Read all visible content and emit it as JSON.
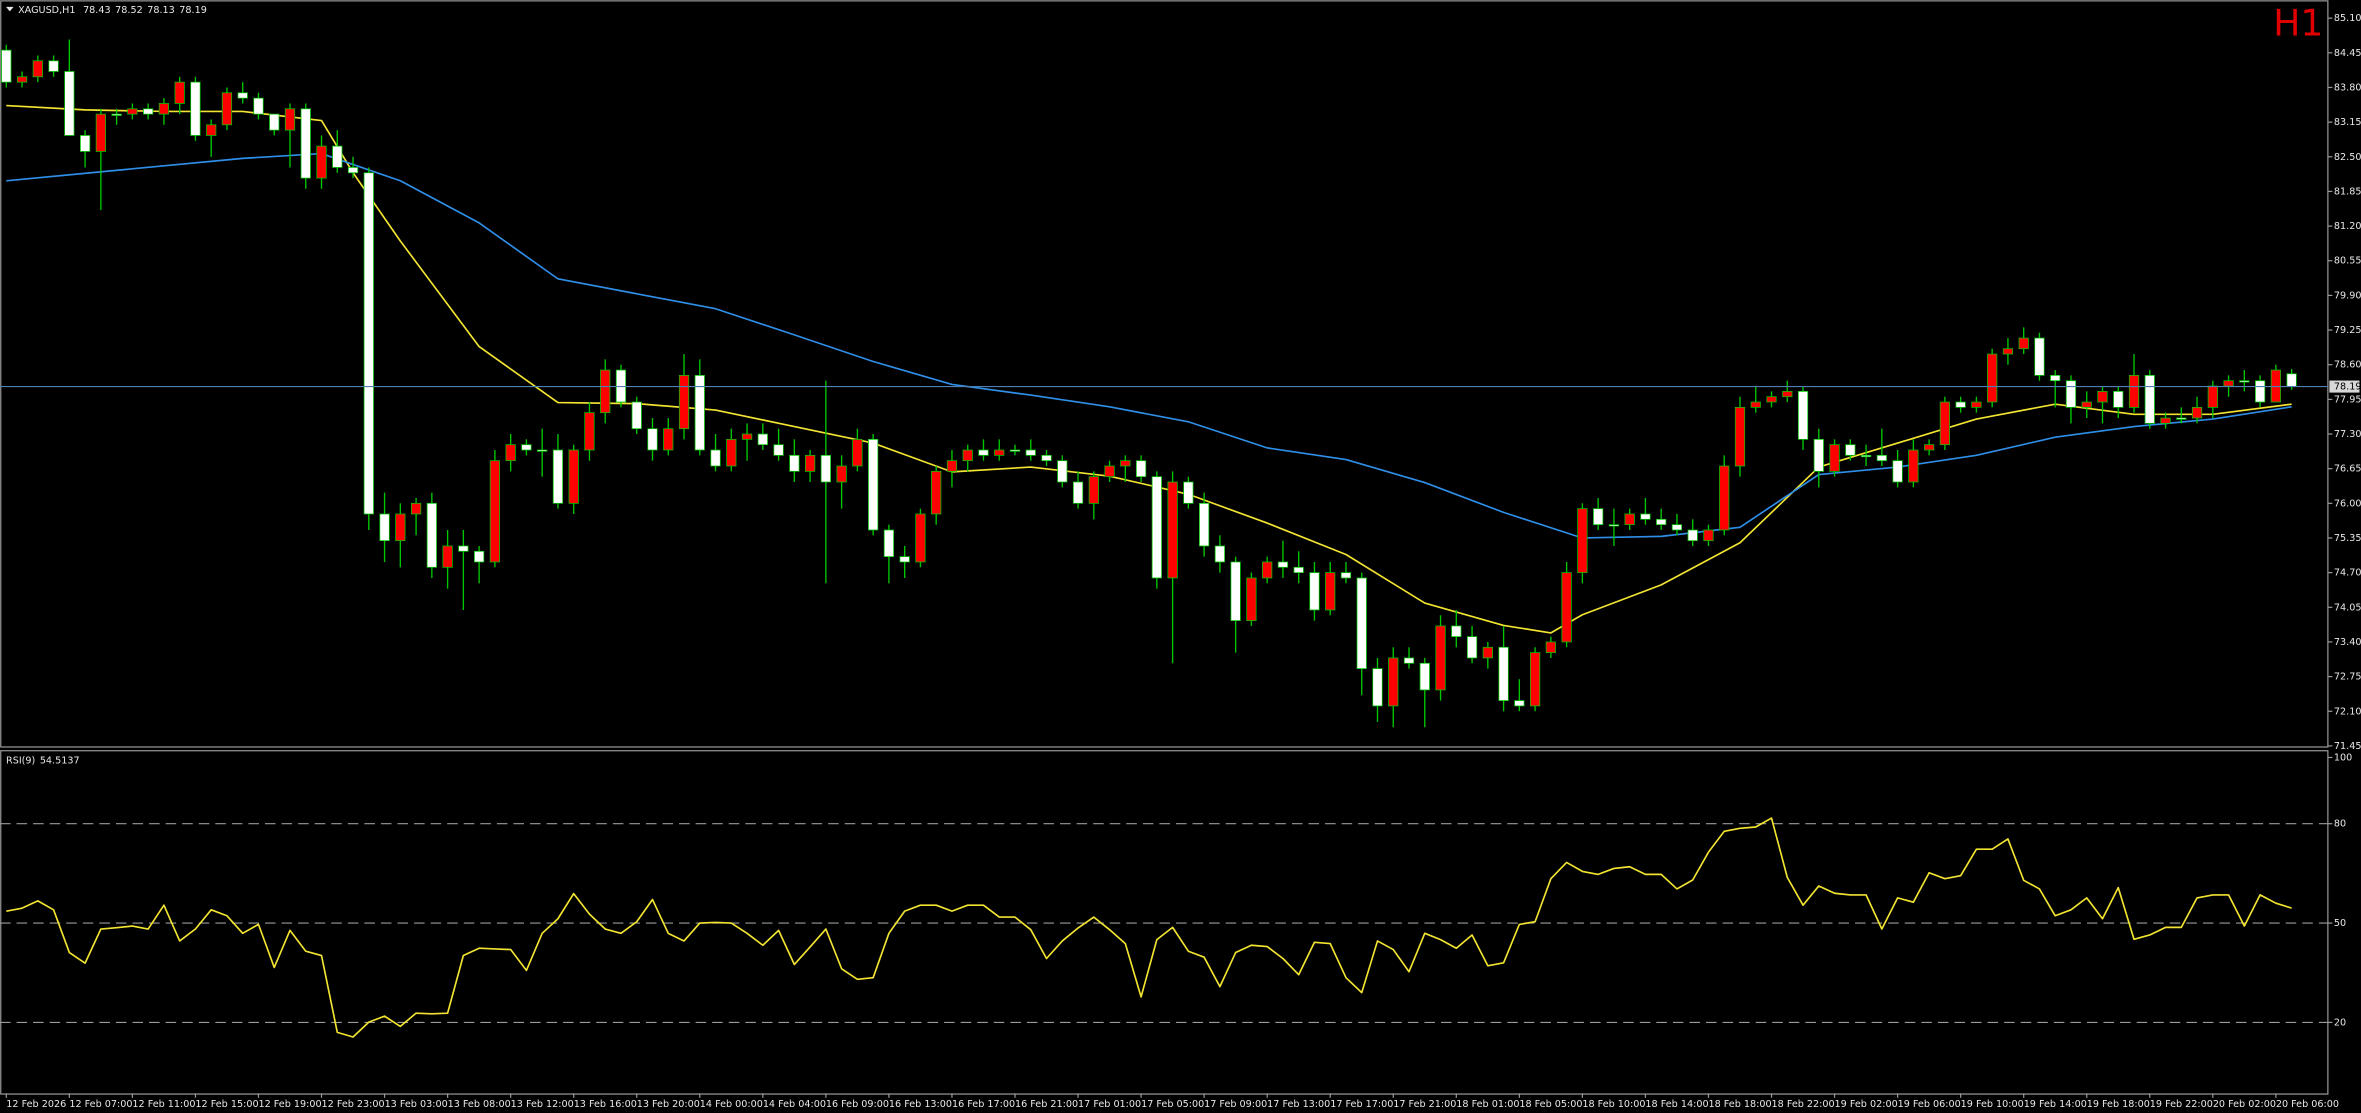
{
  "chart_data": [
    {
      "type": "candlestick",
      "symbol": "XAGUSD,H1",
      "timeframe": "H1",
      "up_color": "#ff0000",
      "down_color": "#ffffff",
      "wick_color": "#00c800",
      "price_line_color": "#4f7fb0",
      "xlim": [
        -0.4,
        147.3
      ],
      "ylim": [
        71.43,
        85.41
      ],
      "yticks": [
        {
          "value": 85.1,
          "label": "85.10"
        },
        84.45,
        {
          "value": 83.8,
          "label": "83.80"
        },
        83.15,
        {
          "value": 82.5,
          "label": "82.50"
        },
        81.85,
        {
          "value": 81.2,
          "label": "81.20"
        },
        80.55,
        {
          "value": 79.9,
          "label": "79.90"
        },
        79.25,
        {
          "value": 78.6,
          "label": "78.60"
        },
        77.95,
        {
          "value": 77.3,
          "label": "77.30"
        },
        76.65,
        {
          "value": 76,
          "label": "76.00"
        },
        75.35,
        {
          "value": 74.7,
          "label": "74.70"
        },
        74.05,
        {
          "value": 73.4,
          "label": "73.40"
        },
        72.75,
        {
          "value": 72.1,
          "label": "72.10"
        },
        71.45
      ],
      "xticks": [
        {
          "value": 0,
          "label": "12 Feb 2026"
        },
        {
          "value": 4,
          "label": "12 Feb 07:00"
        },
        {
          "value": 8,
          "label": "12 Feb 11:00"
        },
        {
          "value": 12,
          "label": "12 Feb 15:00"
        },
        {
          "value": 16,
          "label": "12 Feb 19:00"
        },
        {
          "value": 20,
          "label": "12 Feb 23:00"
        },
        {
          "value": 24,
          "label": "13 Feb 03:00"
        },
        {
          "value": 28,
          "label": "13 Feb 08:00"
        },
        {
          "value": 32,
          "label": "13 Feb 12:00"
        },
        {
          "value": 36,
          "label": "13 Feb 16:00"
        },
        {
          "value": 40,
          "label": "13 Feb 20:00"
        },
        {
          "value": 44,
          "label": "14 Feb 00:00"
        },
        {
          "value": 48,
          "label": "14 Feb 04:00"
        },
        {
          "value": 52,
          "label": "16 Feb 09:00"
        },
        {
          "value": 56,
          "label": "16 Feb 13:00"
        },
        {
          "value": 60,
          "label": "16 Feb 17:00"
        },
        {
          "value": 64,
          "label": "16 Feb 21:00"
        },
        {
          "value": 68,
          "label": "17 Feb 01:00"
        },
        {
          "value": 72,
          "label": "17 Feb 05:00"
        },
        {
          "value": 76,
          "label": "17 Feb 09:00"
        },
        {
          "value": 80,
          "label": "17 Feb 13:00"
        },
        {
          "value": 84,
          "label": "17 Feb 17:00"
        },
        {
          "value": 88,
          "label": "17 Feb 21:00"
        },
        {
          "value": 92,
          "label": "18 Feb 01:00"
        },
        {
          "value": 96,
          "label": "18 Feb 05:00"
        },
        {
          "value": 100,
          "label": "18 Feb 10:00"
        },
        {
          "value": 104,
          "label": "18 Feb 14:00"
        },
        {
          "value": 108,
          "label": "18 Feb 18:00"
        },
        {
          "value": 112,
          "label": "18 Feb 22:00"
        },
        {
          "value": 116,
          "label": "19 Feb 02:00"
        },
        {
          "value": 120,
          "label": "19 Feb 06:00"
        },
        {
          "value": 124,
          "label": "19 Feb 10:00"
        },
        {
          "value": 128,
          "label": "19 Feb 14:00"
        },
        {
          "value": 132,
          "label": "19 Feb 18:00"
        },
        {
          "value": 136,
          "label": "19 Feb 22:00"
        },
        {
          "value": 140,
          "label": "20 Feb 02:00"
        },
        {
          "value": 144,
          "label": "20 Feb 06:00"
        }
      ],
      "open": [
        84.5,
        83.9,
        84.0,
        84.3,
        84.1,
        82.9,
        82.6,
        83.3,
        83.3,
        83.4,
        83.3,
        83.5,
        83.9,
        82.9,
        83.1,
        83.7,
        83.6,
        83.3,
        83.0,
        83.4,
        82.1,
        82.7,
        82.3,
        82.2,
        75.8,
        75.3,
        75.8,
        76.0,
        74.8,
        75.2,
        75.1,
        74.9,
        76.8,
        77.1,
        77.0,
        77.0,
        76.0,
        77.0,
        77.7,
        78.5,
        77.9,
        77.4,
        77.0,
        77.4,
        78.4,
        77.0,
        76.7,
        77.2,
        77.3,
        77.1,
        76.9,
        76.6,
        76.9,
        76.4,
        76.7,
        77.2,
        75.5,
        75.0,
        74.9,
        75.8,
        76.6,
        76.8,
        77.0,
        76.9,
        77.0,
        77.0,
        76.9,
        76.8,
        76.4,
        76.0,
        76.5,
        76.7,
        76.8,
        76.5,
        74.6,
        76.4,
        76.0,
        75.2,
        74.9,
        73.8,
        74.6,
        74.9,
        74.8,
        74.7,
        74.0,
        74.7,
        74.6,
        72.9,
        72.2,
        73.1,
        73.0,
        72.5,
        73.7,
        73.5,
        73.1,
        73.3,
        72.3,
        72.2,
        73.2,
        73.4,
        74.7,
        75.9,
        75.6,
        75.6,
        75.8,
        75.7,
        75.6,
        75.5,
        75.3,
        75.5,
        76.7,
        77.8,
        77.9,
        78.0,
        78.1,
        77.2,
        76.6,
        77.1,
        76.9,
        76.9,
        76.8,
        76.4,
        77.0,
        77.1,
        77.9,
        77.8,
        77.9,
        78.8,
        78.9,
        79.1,
        78.4,
        78.3,
        77.8,
        77.9,
        78.1,
        77.8,
        78.4,
        77.5,
        77.6,
        77.6,
        77.8,
        78.2,
        78.3,
        78.3,
        77.9,
        78.43
      ],
      "high": [
        84.6,
        84.1,
        84.4,
        84.4,
        84.7,
        83.0,
        83.4,
        83.4,
        83.5,
        83.5,
        83.6,
        84.0,
        84.0,
        83.2,
        83.8,
        83.9,
        83.7,
        83.3,
        83.5,
        83.5,
        82.9,
        83.0,
        82.5,
        82.3,
        76.2,
        76.0,
        76.1,
        76.2,
        75.5,
        75.5,
        75.2,
        77.0,
        77.3,
        77.2,
        77.4,
        77.3,
        77.1,
        77.9,
        78.7,
        78.6,
        78.0,
        77.6,
        77.6,
        78.8,
        78.7,
        77.3,
        77.4,
        77.5,
        77.5,
        77.4,
        77.2,
        77.0,
        78.3,
        76.9,
        77.4,
        77.3,
        75.6,
        75.2,
        75.9,
        76.7,
        77.0,
        77.1,
        77.2,
        77.2,
        77.1,
        77.2,
        77.0,
        76.9,
        76.6,
        76.6,
        76.8,
        76.9,
        76.9,
        76.6,
        76.6,
        76.5,
        76.2,
        75.4,
        75.0,
        74.7,
        75.0,
        75.3,
        75.1,
        74.9,
        74.9,
        74.9,
        74.7,
        73.1,
        73.3,
        73.3,
        73.1,
        73.9,
        74.0,
        73.7,
        73.4,
        73.7,
        72.7,
        73.3,
        73.5,
        74.9,
        76.0,
        76.1,
        75.9,
        75.9,
        76.1,
        75.9,
        75.8,
        75.7,
        75.6,
        76.9,
        78.0,
        78.2,
        78.1,
        78.3,
        78.2,
        77.4,
        77.2,
        77.2,
        77.1,
        77.4,
        77.0,
        77.2,
        77.2,
        78.0,
        78.0,
        78.0,
        78.9,
        79.1,
        79.3,
        79.2,
        78.5,
        78.4,
        78.1,
        78.2,
        78.2,
        78.8,
        78.5,
        77.7,
        77.8,
        78.0,
        78.3,
        78.4,
        78.5,
        78.4,
        78.6,
        78.52
      ],
      "low": [
        83.8,
        83.8,
        83.9,
        84.0,
        82.9,
        82.3,
        81.5,
        83.1,
        83.2,
        83.2,
        83.1,
        83.3,
        82.8,
        82.5,
        83.0,
        83.5,
        83.2,
        82.9,
        82.3,
        81.9,
        81.9,
        82.2,
        82.1,
        75.5,
        74.9,
        74.8,
        75.4,
        74.6,
        74.4,
        74.0,
        74.5,
        74.8,
        76.6,
        76.9,
        76.5,
        75.9,
        75.8,
        76.8,
        77.5,
        77.8,
        77.3,
        76.8,
        76.9,
        77.2,
        76.9,
        76.6,
        76.6,
        76.8,
        77.0,
        76.8,
        76.4,
        76.4,
        74.5,
        75.9,
        76.6,
        75.4,
        74.5,
        74.6,
        74.8,
        75.6,
        76.3,
        76.6,
        76.8,
        76.8,
        76.9,
        76.8,
        76.7,
        76.3,
        75.9,
        75.7,
        76.4,
        76.4,
        76.4,
        74.4,
        73.0,
        75.9,
        75.0,
        74.7,
        73.2,
        73.7,
        74.5,
        74.6,
        74.5,
        73.8,
        73.9,
        74.5,
        72.4,
        71.9,
        71.8,
        72.9,
        71.8,
        72.3,
        73.3,
        73.0,
        72.9,
        72.1,
        72.1,
        72.1,
        73.1,
        73.3,
        74.5,
        75.5,
        75.2,
        75.5,
        75.6,
        75.5,
        75.4,
        75.2,
        75.2,
        75.4,
        76.5,
        77.7,
        77.8,
        77.9,
        77.0,
        76.3,
        76.5,
        76.8,
        76.7,
        76.7,
        76.3,
        76.3,
        76.9,
        77.0,
        77.7,
        77.7,
        77.8,
        78.6,
        78.8,
        78.3,
        77.8,
        77.5,
        77.6,
        77.5,
        77.6,
        77.7,
        77.4,
        77.4,
        77.5,
        77.5,
        77.6,
        78.0,
        78.1,
        77.8,
        77.9,
        78.13
      ],
      "close": [
        83.9,
        84.0,
        84.3,
        84.1,
        82.9,
        82.6,
        83.3,
        83.3,
        83.4,
        83.3,
        83.5,
        83.9,
        82.9,
        83.1,
        83.7,
        83.6,
        83.3,
        83.0,
        83.4,
        82.1,
        82.7,
        82.3,
        82.2,
        75.8,
        75.3,
        75.8,
        76.0,
        74.8,
        75.2,
        75.1,
        74.9,
        76.8,
        77.1,
        77.0,
        77.0,
        76.0,
        77.0,
        77.7,
        78.5,
        77.9,
        77.4,
        77.0,
        77.4,
        78.4,
        77.0,
        76.7,
        77.2,
        77.3,
        77.1,
        76.9,
        76.6,
        76.9,
        76.4,
        76.7,
        77.2,
        75.5,
        75.0,
        74.9,
        75.8,
        76.6,
        76.8,
        77.0,
        76.9,
        77.0,
        77.0,
        76.9,
        76.8,
        76.4,
        76.0,
        76.5,
        76.7,
        76.8,
        76.5,
        74.6,
        76.4,
        76.0,
        75.2,
        74.9,
        73.8,
        74.6,
        74.9,
        74.8,
        74.7,
        74.0,
        74.7,
        74.6,
        72.9,
        72.2,
        73.1,
        73.0,
        72.5,
        73.7,
        73.5,
        73.1,
        73.3,
        72.3,
        72.2,
        73.2,
        73.4,
        74.7,
        75.9,
        75.6,
        75.6,
        75.8,
        75.7,
        75.6,
        75.5,
        75.3,
        75.5,
        76.7,
        77.8,
        77.9,
        78.0,
        78.1,
        77.2,
        76.6,
        77.1,
        76.9,
        76.9,
        76.8,
        76.4,
        77.0,
        77.1,
        77.9,
        77.8,
        77.9,
        78.8,
        78.9,
        79.1,
        78.4,
        78.3,
        77.8,
        77.9,
        78.1,
        77.8,
        78.4,
        77.5,
        77.6,
        77.6,
        77.8,
        78.2,
        78.3,
        78.3,
        77.9,
        78.5,
        78.19
      ],
      "overlays": [
        {
          "type": "line",
          "color": "#f2e431",
          "x": [
            0,
            5,
            10,
            15,
            20,
            22,
            25,
            30,
            35,
            40,
            45,
            50,
            55,
            60,
            65,
            70,
            75,
            80,
            85,
            90,
            95,
            98,
            100,
            105,
            110,
            115,
            120,
            125,
            130,
            135,
            140,
            145
          ],
          "values": [
            83.46,
            83.38,
            83.35,
            83.35,
            83.18,
            82.2,
            80.92,
            78.94,
            77.89,
            77.87,
            77.75,
            77.44,
            77.13,
            76.59,
            76.68,
            76.51,
            76.17,
            75.63,
            75.04,
            74.13,
            73.71,
            73.57,
            73.91,
            74.47,
            75.26,
            76.68,
            77.13,
            77.58,
            77.86,
            77.67,
            77.67,
            77.86
          ]
        },
        {
          "type": "line",
          "color": "#2f8fe8",
          "x": [
            0,
            10,
            15,
            20,
            25,
            30,
            35,
            40,
            45,
            50,
            55,
            60,
            65,
            70,
            75,
            80,
            85,
            90,
            95,
            100,
            105,
            110,
            115,
            120,
            125,
            130,
            135,
            140,
            145
          ],
          "values": [
            82.05,
            82.33,
            82.47,
            82.56,
            82.05,
            81.26,
            80.21,
            79.93,
            79.65,
            79.16,
            78.66,
            78.23,
            78.03,
            77.81,
            77.53,
            77.04,
            76.82,
            76.39,
            75.83,
            75.35,
            75.38,
            75.55,
            76.54,
            76.68,
            76.9,
            77.24,
            77.44,
            77.58,
            77.81
          ]
        }
      ]
    },
    {
      "type": "line",
      "indicator": "RSI(9)",
      "color": "#f2e431",
      "level_color": "#9a9a9a",
      "xlim": [
        -0.4,
        147.3
      ],
      "ylim": [
        -1.4,
        101.8
      ],
      "yticks": [
        100,
        80,
        50,
        20
      ],
      "levels": [
        80,
        50,
        20
      ],
      "values": [
        53.6,
        54.5,
        56.7,
        54,
        41.1,
        37.9,
        48.2,
        48.6,
        49.1,
        48.2,
        55.4,
        44.6,
        48.2,
        54,
        52.2,
        46.9,
        49.6,
        36.6,
        47.8,
        41.5,
        40.2,
        17,
        15.6,
        20.1,
        21.9,
        18.8,
        22.8,
        22.6,
        22.8,
        40.2,
        42.4,
        42.2,
        42,
        35.7,
        46.9,
        51.3,
        58.9,
        52.7,
        48.2,
        46.9,
        50.4,
        57.1,
        46.9,
        44.6,
        50,
        50.2,
        50,
        46.9,
        43.3,
        47.8,
        37.5,
        42.8,
        48.2,
        36.2,
        33,
        33.5,
        46.9,
        53.6,
        55.4,
        55.4,
        53.6,
        55.4,
        55.4,
        51.8,
        51.8,
        48,
        39.3,
        44.6,
        48.5,
        51.8,
        48,
        43.8,
        27.7,
        45,
        48.7,
        41.5,
        39.7,
        30.8,
        41.1,
        43.3,
        42.9,
        39.3,
        34.4,
        44.2,
        43.8,
        33.5,
        29,
        44.6,
        42,
        35.3,
        46.9,
        45,
        42.4,
        46.4,
        37.1,
        38,
        49.6,
        50.4,
        63.4,
        68.3,
        65.6,
        64.7,
        66.5,
        67,
        64.7,
        64.7,
        60.3,
        63,
        71.4,
        77.7,
        78.6,
        79,
        81.7,
        63.8,
        55.4,
        61.2,
        59,
        58.5,
        58.5,
        48.2,
        57.6,
        56.3,
        65.2,
        63.4,
        64.3,
        72.3,
        72.3,
        75.4,
        62.9,
        60.3,
        52.2,
        54,
        57.6,
        51.3,
        60.7,
        45.1,
        46.4,
        48.7,
        48.7,
        57.6,
        58.5,
        58.5,
        49.1,
        58.5,
        56,
        54.5137
      ]
    }
  ]
}
